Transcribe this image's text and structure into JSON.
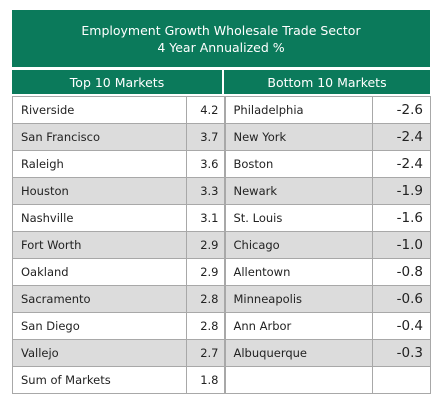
{
  "title_line1": "Employment Growth Wholesale Trade Sector",
  "title_line2": "4 Year Annualized %",
  "top_header": "Top 10 Markets",
  "bottom_header": "Bottom 10 Markets",
  "rows": [
    {
      "top_name": "Riverside",
      "top_value": "4.2",
      "bottom_name": "Philadelphia",
      "bottom_value": "-2.6"
    },
    {
      "top_name": "San Francisco",
      "top_value": "3.7",
      "bottom_name": "New York",
      "bottom_value": "-2.4"
    },
    {
      "top_name": "Raleigh",
      "top_value": "3.6",
      "bottom_name": "Boston",
      "bottom_value": "-2.4"
    },
    {
      "top_name": "Houston",
      "top_value": "3.3",
      "bottom_name": "Newark",
      "bottom_value": "-1.9"
    },
    {
      "top_name": "Nashville",
      "top_value": "3.1",
      "bottom_name": "St. Louis",
      "bottom_value": "-1.6"
    },
    {
      "top_name": "Fort Worth",
      "top_value": "2.9",
      "bottom_name": "Chicago",
      "bottom_value": "-1.0"
    },
    {
      "top_name": "Oakland",
      "top_value": "2.9",
      "bottom_name": "Allentown",
      "bottom_value": "-0.8"
    },
    {
      "top_name": "Sacramento",
      "top_value": "2.8",
      "bottom_name": "Minneapolis",
      "bottom_value": "-0.6"
    },
    {
      "top_name": "San Diego",
      "top_value": "2.8",
      "bottom_name": "Ann Arbor",
      "bottom_value": "-0.4"
    },
    {
      "top_name": "Vallejo",
      "top_value": "2.7",
      "bottom_name": "Albuquerque",
      "bottom_value": "-0.3"
    },
    {
      "top_name": "Sum of Markets",
      "top_value": "1.8",
      "bottom_name": "",
      "bottom_value": ""
    }
  ],
  "colors": {
    "header_bg": "#0b7a5b",
    "header_text": "#ffffff",
    "shaded_row": "#dcdcdc"
  },
  "chart_data": {
    "type": "table",
    "title": "Employment Growth Wholesale Trade Sector",
    "subtitle": "4 Year Annualized %",
    "columns": [
      "Top 10 Markets",
      "Bottom 10 Markets"
    ],
    "top_markets": [
      {
        "market": "Riverside",
        "value": 4.2
      },
      {
        "market": "San Francisco",
        "value": 3.7
      },
      {
        "market": "Raleigh",
        "value": 3.6
      },
      {
        "market": "Houston",
        "value": 3.3
      },
      {
        "market": "Nashville",
        "value": 3.1
      },
      {
        "market": "Fort Worth",
        "value": 2.9
      },
      {
        "market": "Oakland",
        "value": 2.9
      },
      {
        "market": "Sacramento",
        "value": 2.8
      },
      {
        "market": "San Diego",
        "value": 2.8
      },
      {
        "market": "Vallejo",
        "value": 2.7
      },
      {
        "market": "Sum of Markets",
        "value": 1.8
      }
    ],
    "bottom_markets": [
      {
        "market": "Philadelphia",
        "value": -2.6
      },
      {
        "market": "New York",
        "value": -2.4
      },
      {
        "market": "Boston",
        "value": -2.4
      },
      {
        "market": "Newark",
        "value": -1.9
      },
      {
        "market": "St. Louis",
        "value": -1.6
      },
      {
        "market": "Chicago",
        "value": -1.0
      },
      {
        "market": "Allentown",
        "value": -0.8
      },
      {
        "market": "Minneapolis",
        "value": -0.6
      },
      {
        "market": "Ann Arbor",
        "value": -0.4
      },
      {
        "market": "Albuquerque",
        "value": -0.3
      }
    ]
  }
}
